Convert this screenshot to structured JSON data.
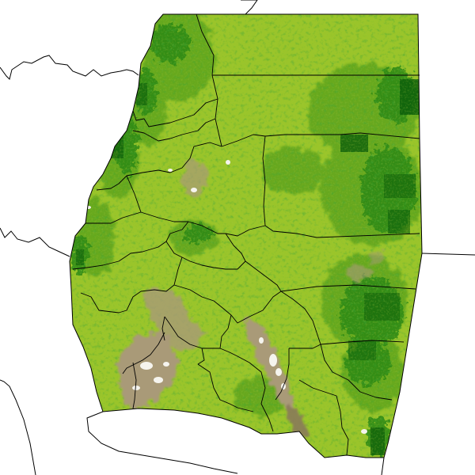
{
  "map": {
    "colors": {
      "background": "#ffffff",
      "vegetation_base": "#93c022",
      "vegetation_light": "#a9cf3a",
      "vegetation_medium": "#5fa41c",
      "vegetation_dense": "#2d8a12",
      "vegetation_darkest": "#0c5e0a",
      "sparse_brown": "#a99a78",
      "sparse_dark_brown": "#8a7a5a",
      "bare_white": "#f5f4ee",
      "boundary_line": "#000000"
    }
  }
}
